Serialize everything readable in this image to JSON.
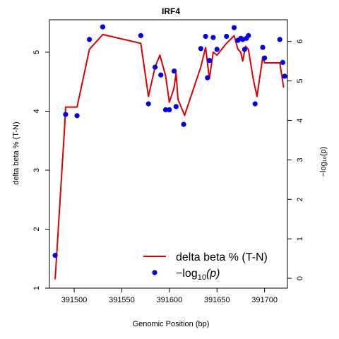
{
  "chart_data": {
    "type": "line",
    "title": "IRF4",
    "xlabel": "Genomic Position (bp)",
    "ylabel": "delta beta % (T-N)",
    "y2label": "−log₁₀(p)",
    "xlim": [
      391474,
      391724
    ],
    "ylim": [
      1,
      5.55
    ],
    "y2lim": [
      -0.25,
      6.55
    ],
    "x_ticks": [
      391500,
      391550,
      391600,
      391650,
      391700
    ],
    "y_ticks": [
      1,
      2,
      3,
      4,
      5
    ],
    "y2_ticks": [
      0,
      1,
      2,
      3,
      4,
      5,
      6
    ],
    "grid": false,
    "legend": {
      "position": "bottom-right",
      "line_label": "delta beta % (T-N)",
      "point_label_prefix": "−log",
      "point_label_sub": "10",
      "point_label_suffix": "(p)"
    },
    "series": [
      {
        "name": "delta beta % (T-N)",
        "color": "#dd0000",
        "axis": "left",
        "style": "line",
        "x": [
          391480,
          391490,
          391491,
          391503,
          391516,
          391530,
          391570,
          391578,
          391585,
          391590,
          391596,
          391600,
          391605,
          391607,
          391609,
          391616,
          391633,
          391638,
          391642,
          391646,
          391650,
          391660,
          391668,
          391672,
          391675,
          391677,
          391680,
          391683,
          391688,
          391692,
          391698,
          391700,
          391716,
          391720
        ],
        "values": [
          1.15,
          3.75,
          4.07,
          4.07,
          5.05,
          5.3,
          5.15,
          4.25,
          4.75,
          4.95,
          4.6,
          4.15,
          4.4,
          4.65,
          4.2,
          3.93,
          4.75,
          5.08,
          4.55,
          5.0,
          4.95,
          5.15,
          5.28,
          5.05,
          5.0,
          4.85,
          5.1,
          5.05,
          4.55,
          4.25,
          4.92,
          4.82,
          4.82,
          4.4
        ]
      },
      {
        "name": "−log₁₀(p)",
        "color": "#0000ee",
        "axis": "right",
        "style": "points",
        "x": [
          391480,
          391491,
          391503,
          391516,
          391530,
          391570,
          391578,
          391585,
          391591,
          391596,
          391600,
          391605,
          391607,
          391615,
          391633,
          391638,
          391640,
          391642,
          391646,
          391650,
          391660,
          391668,
          391672,
          391675,
          391677,
          391679,
          391681,
          391683,
          391690,
          391698,
          391700,
          391716,
          391719,
          391721
        ],
        "values": [
          0.58,
          4.15,
          4.12,
          6.05,
          6.37,
          6.15,
          4.42,
          5.35,
          5.15,
          4.27,
          4.27,
          5.25,
          4.35,
          3.9,
          5.82,
          6.13,
          5.08,
          5.52,
          6.1,
          5.8,
          6.13,
          6.35,
          6.03,
          6.08,
          6.05,
          5.8,
          6.08,
          6.15,
          4.42,
          5.85,
          5.58,
          6.05,
          5.47,
          5.12
        ]
      }
    ]
  }
}
